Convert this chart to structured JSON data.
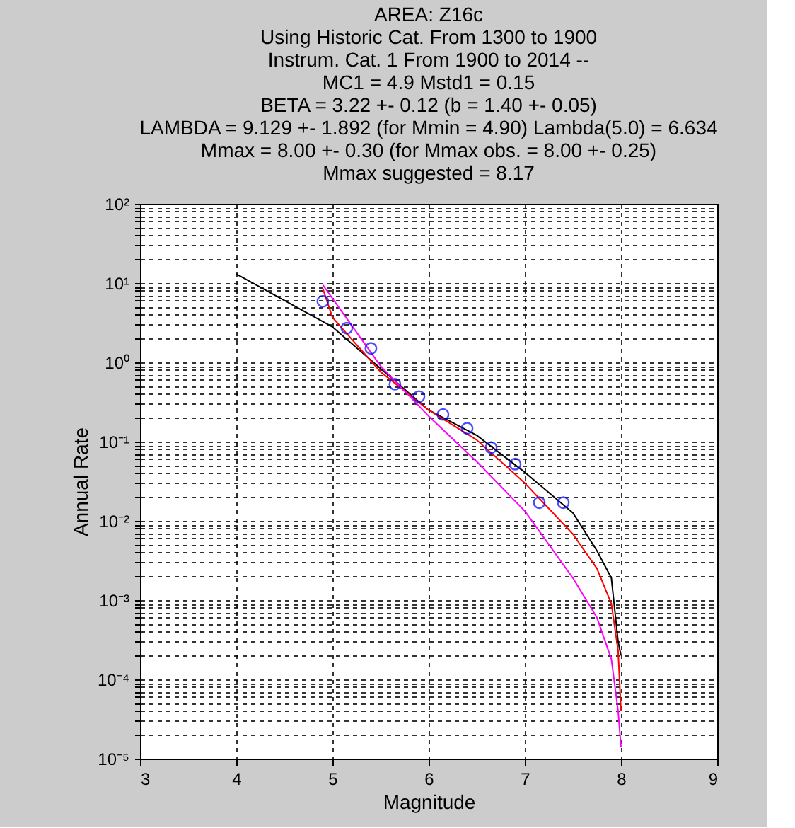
{
  "chart_data": {
    "type": "line",
    "title": "AREA: Z16c\nUsing Historic Cat.  From 1300 to 1900\nInstrum. Cat. 1 From 1900 to 2014 --\nMC1 = 4.9 Mstd1 = 0.15\nBETA   = 3.22 +-  0.12 (b = 1.40 +- 0.05)\nLAMBDA = 9.129 +- 1.892 (for Mmin = 4.90)   Lambda(5.0) = 6.634\nMmax   = 8.00 +- 0.30  (for Mmax obs. = 8.00 +- 0.25)\nMmax suggested = 8.17",
    "xlabel": "Magnitude",
    "ylabel": "Annual Rate",
    "log": "y",
    "grid": true,
    "legend": false,
    "line_style": "solid",
    "xlim": [
      3,
      9
    ],
    "xticks": [
      3,
      4,
      5,
      6,
      7,
      8,
      9
    ],
    "ylim": [
      1e-05,
      100
    ],
    "yticks": [
      {
        "value": 1e-05,
        "label": "10⁻⁵"
      },
      {
        "value": 2e-05,
        "label": null
      },
      {
        "value": 3e-05,
        "label": null
      },
      {
        "value": 4e-05,
        "label": null
      },
      {
        "value": 5e-05,
        "label": null
      },
      {
        "value": 6e-05,
        "label": null
      },
      {
        "value": 7e-05,
        "label": null
      },
      {
        "value": 8e-05,
        "label": null
      },
      {
        "value": 9e-05,
        "label": null
      },
      {
        "value": 0.0001,
        "label": "10⁻⁴"
      },
      {
        "value": 0.0002,
        "label": null
      },
      {
        "value": 0.0003,
        "label": null
      },
      {
        "value": 0.0004,
        "label": null
      },
      {
        "value": 0.0005,
        "label": null
      },
      {
        "value": 0.0006,
        "label": null
      },
      {
        "value": 0.0007,
        "label": null
      },
      {
        "value": 0.0008,
        "label": null
      },
      {
        "value": 0.0009,
        "label": null
      },
      {
        "value": 0.001,
        "label": "10⁻³"
      },
      {
        "value": 0.002,
        "label": null
      },
      {
        "value": 0.003,
        "label": null
      },
      {
        "value": 0.004,
        "label": null
      },
      {
        "value": 0.005,
        "label": null
      },
      {
        "value": 0.006,
        "label": null
      },
      {
        "value": 0.007,
        "label": null
      },
      {
        "value": 0.008,
        "label": null
      },
      {
        "value": 0.009,
        "label": null
      },
      {
        "value": 0.01,
        "label": "10⁻²"
      },
      {
        "value": 0.02,
        "label": null
      },
      {
        "value": 0.03,
        "label": null
      },
      {
        "value": 0.04,
        "label": null
      },
      {
        "value": 0.05,
        "label": null
      },
      {
        "value": 0.06,
        "label": null
      },
      {
        "value": 0.07,
        "label": null
      },
      {
        "value": 0.08,
        "label": null
      },
      {
        "value": 0.09,
        "label": null
      },
      {
        "value": 0.1,
        "label": "10⁻¹"
      },
      {
        "value": 0.2,
        "label": null
      },
      {
        "value": 0.3,
        "label": null
      },
      {
        "value": 0.4,
        "label": null
      },
      {
        "value": 0.5,
        "label": null
      },
      {
        "value": 0.6,
        "label": null
      },
      {
        "value": 0.7,
        "label": null
      },
      {
        "value": 0.8,
        "label": null
      },
      {
        "value": 0.9,
        "label": null
      },
      {
        "value": 1,
        "label": "10⁰"
      },
      {
        "value": 2,
        "label": null
      },
      {
        "value": 3,
        "label": null
      },
      {
        "value": 4,
        "label": null
      },
      {
        "value": 5,
        "label": null
      },
      {
        "value": 6,
        "label": null
      },
      {
        "value": 7,
        "label": null
      },
      {
        "value": 8,
        "label": null
      },
      {
        "value": 9,
        "label": null
      },
      {
        "value": 10,
        "label": "10¹"
      },
      {
        "value": 20,
        "label": null
      },
      {
        "value": 30,
        "label": null
      },
      {
        "value": 40,
        "label": null
      },
      {
        "value": 50,
        "label": null
      },
      {
        "value": 60,
        "label": null
      },
      {
        "value": 70,
        "label": null
      },
      {
        "value": 80,
        "label": null
      },
      {
        "value": 90,
        "label": null
      },
      {
        "value": 100,
        "label": "10²"
      }
    ],
    "series": [
      {
        "color": "#000000",
        "x": [
          4,
          5,
          6,
          6.5,
          7,
          7.5,
          7.75,
          7.9,
          7.97,
          8
        ],
        "values": [
          13,
          2.8,
          0.25,
          0.12,
          0.041,
          0.0126,
          0.0042,
          0.0019,
          0.0003,
          0.0002
        ]
      },
      {
        "color": "#ff0000",
        "x": [
          4.9,
          5,
          5.5,
          6,
          6.5,
          7,
          7.5,
          7.75,
          7.9,
          7.97,
          8
        ],
        "values": [
          8.5,
          3.7,
          0.76,
          0.25,
          0.105,
          0.03,
          0.0068,
          0.0025,
          0.0009,
          0.00023,
          4e-05
        ]
      },
      {
        "color": "#ff00ff",
        "x": [
          4.9,
          5.5,
          6,
          6.5,
          7,
          7.5,
          7.75,
          7.9,
          7.97,
          8
        ],
        "values": [
          9.5,
          0.9,
          0.21,
          0.056,
          0.0133,
          0.0019,
          0.0006,
          0.00018,
          4e-05,
          1.4e-05
        ]
      },
      {
        "type": "scatter",
        "marker": "circle",
        "color": "#0000ff",
        "x": [
          4.9,
          5.15,
          5.4,
          5.65,
          5.9,
          6.15,
          6.4,
          6.65,
          6.9,
          7.15,
          7.4
        ],
        "values": [
          5.9,
          2.7,
          1.5,
          0.53,
          0.37,
          0.22,
          0.147,
          0.084,
          0.052,
          0.017,
          0.017
        ]
      }
    ]
  }
}
